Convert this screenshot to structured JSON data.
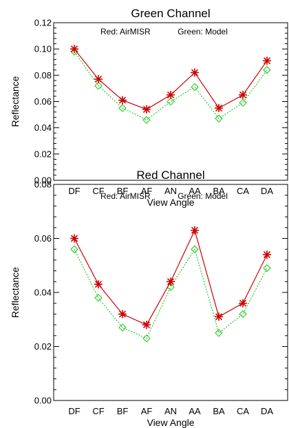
{
  "chart_data": [
    {
      "type": "line",
      "title": "Green Channel",
      "annotation_red": "Red: AirMISR",
      "annotation_green": "Green: Model",
      "xlabel": "View Angle",
      "ylabel": "Reflectance",
      "categories": [
        "DF",
        "CF",
        "BF",
        "AF",
        "AN",
        "AA",
        "BA",
        "CA",
        "DA"
      ],
      "ylim": [
        0,
        0.12
      ],
      "yticks": [
        "0.00",
        "0.02",
        "0.04",
        "0.06",
        "0.08",
        "0.10",
        "0.12"
      ],
      "series": [
        {
          "name": "AirMISR",
          "color": "#cc0000",
          "marker": "asterisk",
          "values": [
            0.1,
            0.077,
            0.061,
            0.054,
            0.065,
            0.082,
            0.055,
            0.065,
            0.091
          ]
        },
        {
          "name": "Model",
          "color": "#22cc22",
          "marker": "diamond",
          "values": [
            0.098,
            0.072,
            0.055,
            0.046,
            0.06,
            0.071,
            0.047,
            0.059,
            0.084
          ]
        }
      ]
    },
    {
      "type": "line",
      "title": "Red Channel",
      "annotation_red": "Red: AirMISR",
      "annotation_green": "Green: Model",
      "xlabel": "View Angle",
      "ylabel": "Reflectance",
      "categories": [
        "DF",
        "CF",
        "BF",
        "AF",
        "AN",
        "AA",
        "BA",
        "CA",
        "DA"
      ],
      "ylim": [
        0,
        0.08
      ],
      "yticks": [
        "0.00",
        "0.02",
        "0.04",
        "0.06",
        "0.08"
      ],
      "series": [
        {
          "name": "AirMISR",
          "color": "#cc0000",
          "marker": "asterisk",
          "values": [
            0.06,
            0.043,
            0.032,
            0.028,
            0.044,
            0.063,
            0.031,
            0.036,
            0.054
          ]
        },
        {
          "name": "Model",
          "color": "#22cc22",
          "marker": "diamond",
          "values": [
            0.056,
            0.038,
            0.027,
            0.023,
            0.042,
            0.056,
            0.025,
            0.032,
            0.049
          ]
        }
      ]
    }
  ]
}
